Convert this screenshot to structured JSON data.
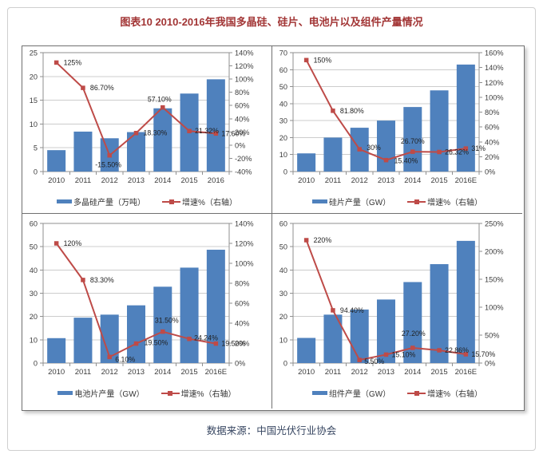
{
  "title": "图表10  2010-2016年我国多晶硅、硅片、电池片以及组件产量情况",
  "source": "数据来源：中国光伏行业协会",
  "colors": {
    "bar": "#4f81bd",
    "line": "#be4b48",
    "title": "#a23535",
    "source": "#364560",
    "grid": "#cccccc",
    "axis": "#8f8f8f",
    "tick_text": "#3c3c3c",
    "data_label": "#1f1f1f"
  },
  "chart_data": [
    {
      "type": "bar+line",
      "name": "polysilicon-output",
      "categories": [
        "2010",
        "2011",
        "2012",
        "2013",
        "2014",
        "2015",
        "2016"
      ],
      "series": [
        {
          "name": "多晶硅产量（万吨）",
          "type": "bar",
          "axis": "left",
          "values": [
            4.5,
            8.4,
            7.0,
            8.3,
            13.3,
            16.4,
            19.4
          ]
        },
        {
          "name": "增速%（右轴）",
          "type": "line",
          "axis": "right",
          "values": [
            125,
            86.7,
            -15.5,
            18.3,
            57.1,
            21.32,
            17.6
          ],
          "labels": [
            "125%",
            "86.70%",
            "-15.50%",
            "18.30%",
            "57.10%",
            "21.32%",
            "17.60%"
          ]
        }
      ],
      "left_axis": {
        "min": 0,
        "max": 25,
        "step": 5
      },
      "right_axis": {
        "min": -40,
        "max": 140,
        "step": 20,
        "suffix": "%"
      }
    },
    {
      "type": "bar+line",
      "name": "wafer-output",
      "categories": [
        "2010",
        "2011",
        "2012",
        "2013",
        "2014",
        "2015",
        "2016E"
      ],
      "series": [
        {
          "name": "硅片产量（GW）",
          "type": "bar",
          "axis": "left",
          "values": [
            10.7,
            20,
            25.8,
            30,
            38,
            47.8,
            63
          ]
        },
        {
          "name": "增速%（右轴）",
          "type": "line",
          "axis": "right",
          "values": [
            150,
            81.8,
            30,
            15.4,
            26.7,
            26.32,
            31
          ],
          "labels": [
            "150%",
            "81.80%",
            "30%",
            "15.40%",
            "26.70%",
            "26.32%",
            "31%"
          ]
        }
      ],
      "left_axis": {
        "min": 0,
        "max": 70,
        "step": 10
      },
      "right_axis": {
        "min": 0,
        "max": 160,
        "step": 20,
        "suffix": "%"
      }
    },
    {
      "type": "bar+line",
      "name": "cell-output",
      "categories": [
        "2010",
        "2011",
        "2012",
        "2013",
        "2014",
        "2015",
        "2016E"
      ],
      "series": [
        {
          "name": "电池片产量（GW）",
          "type": "bar",
          "axis": "left",
          "values": [
            10.7,
            19.5,
            20.8,
            24.8,
            32.8,
            41,
            48.7
          ]
        },
        {
          "name": "增速%（右轴）",
          "type": "line",
          "axis": "right",
          "values": [
            120,
            83.3,
            6.1,
            19.5,
            31.5,
            24.24,
            19.5
          ],
          "labels": [
            "120%",
            "83.30%",
            "6.10%",
            "19.50%",
            "31.50%",
            "24.24%",
            "19.50%"
          ]
        }
      ],
      "left_axis": {
        "min": 0,
        "max": 60,
        "step": 10
      },
      "right_axis": {
        "min": 0,
        "max": 140,
        "step": 20,
        "suffix": "%"
      }
    },
    {
      "type": "bar+line",
      "name": "module-output",
      "categories": [
        "2010",
        "2011",
        "2012",
        "2013",
        "2014",
        "2015",
        "2016E"
      ],
      "series": [
        {
          "name": "组件产量（GW）",
          "type": "bar",
          "axis": "left",
          "values": [
            10.8,
            20.8,
            23,
            27.3,
            34.8,
            42.5,
            52.5
          ]
        },
        {
          "name": "增速%（右轴）",
          "type": "line",
          "axis": "right",
          "values": [
            220,
            94.4,
            5.5,
            15.1,
            27.2,
            22.86,
            15.7
          ],
          "labels": [
            "220%",
            "94.40%",
            "5.50%",
            "15.10%",
            "27.20%",
            "22.86%",
            "15.70%"
          ]
        }
      ],
      "left_axis": {
        "min": 0,
        "max": 60,
        "step": 10
      },
      "right_axis": {
        "min": 0,
        "max": 250,
        "step": 50,
        "suffix": "%"
      }
    }
  ]
}
